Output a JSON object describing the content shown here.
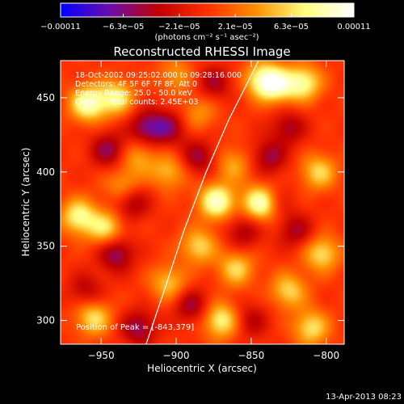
{
  "chart_data": {
    "type": "heatmap",
    "title": "Reconstructed RHESSI Image",
    "xlabel": "Heliocentric X (arcsec)",
    "ylabel": "Heliocentric Y (arcsec)",
    "xlim": [
      -977,
      -788
    ],
    "ylim": [
      284,
      475
    ],
    "x_ticks": [
      -950,
      -900,
      -850,
      -800
    ],
    "x_tick_labels": [
      "−950",
      "−900",
      "−850",
      "−800"
    ],
    "y_ticks": [
      300,
      350,
      400,
      450
    ],
    "y_tick_labels": [
      "300",
      "350",
      "400",
      "450"
    ],
    "colorbar": {
      "range": [
        -0.00011,
        0.00011
      ],
      "ticks": [
        -0.00011,
        -6.3e-05,
        -2.1e-05,
        2.1e-05,
        6.3e-05,
        0.00011
      ],
      "tick_labels": [
        "−0.00011",
        "−6.3e−05",
        "−2.1e−05",
        "2.1e−05",
        "6.3e−05",
        "0.00011"
      ],
      "unit_label": "(photons cm⁻² s⁻¹ asec⁻²)",
      "colors": [
        "#0000ff",
        "#6a0dad",
        "#c00000",
        "#ff3000",
        "#ff9000",
        "#ffff80",
        "#ffffff"
      ]
    },
    "annotations": [
      "18-Oct-2002 09:25:02.000 to 09:28:16.000",
      "Detectors: 4F 5F 6F 7F 8F, Att 0",
      "Energy Range: 25.0 - 50.0 keV",
      "Clean     Total counts: 2.45E+03"
    ],
    "peak_label": "Position of Peak = [-843,379]",
    "peak": [
      -843,
      379
    ],
    "limb_points": [
      [
        -920,
        284
      ],
      [
        -908,
        320
      ],
      [
        -895,
        360
      ],
      [
        -880,
        400
      ],
      [
        -865,
        435
      ],
      [
        -845,
        475
      ]
    ],
    "hot_spots": [
      {
        "x": -843,
        "y": 379,
        "v": 1.0
      },
      {
        "x": -873,
        "y": 380,
        "v": 0.85
      },
      {
        "x": -959,
        "y": 446,
        "v": 0.8
      },
      {
        "x": -965,
        "y": 370,
        "v": 0.7
      },
      {
        "x": -940,
        "y": 450,
        "v": 0.65
      },
      {
        "x": -947,
        "y": 362,
        "v": 0.6
      },
      {
        "x": -842,
        "y": 462,
        "v": 0.75
      },
      {
        "x": -815,
        "y": 460,
        "v": 0.7
      },
      {
        "x": -832,
        "y": 458,
        "v": 0.6
      },
      {
        "x": -805,
        "y": 400,
        "v": 0.55
      },
      {
        "x": -803,
        "y": 345,
        "v": 0.6
      },
      {
        "x": -825,
        "y": 320,
        "v": 0.55
      },
      {
        "x": -810,
        "y": 295,
        "v": 0.6
      },
      {
        "x": -870,
        "y": 300,
        "v": 0.7
      },
      {
        "x": -860,
        "y": 335,
        "v": 0.55
      },
      {
        "x": -905,
        "y": 325,
        "v": 0.5
      },
      {
        "x": -885,
        "y": 350,
        "v": 0.55
      },
      {
        "x": -955,
        "y": 302,
        "v": 0.6
      },
      {
        "x": -905,
        "y": 400,
        "v": 0.45
      },
      {
        "x": -925,
        "y": 410,
        "v": 0.4
      },
      {
        "x": -862,
        "y": 405,
        "v": 0.4
      },
      {
        "x": -900,
        "y": 465,
        "v": 0.35
      },
      {
        "x": -935,
        "y": 390,
        "v": 0.45
      },
      {
        "x": -885,
        "y": 440,
        "v": 0.35
      }
    ],
    "cold_spots": [
      {
        "x": -920,
        "y": 430,
        "v": -0.55
      },
      {
        "x": -945,
        "y": 415,
        "v": -0.5
      },
      {
        "x": -905,
        "y": 430,
        "v": -0.45
      },
      {
        "x": -875,
        "y": 460,
        "v": -0.4
      },
      {
        "x": -940,
        "y": 345,
        "v": -0.55
      },
      {
        "x": -930,
        "y": 380,
        "v": -0.5
      },
      {
        "x": -838,
        "y": 410,
        "v": -0.45
      },
      {
        "x": -835,
        "y": 380,
        "v": -0.35
      },
      {
        "x": -885,
        "y": 410,
        "v": -0.45
      },
      {
        "x": -855,
        "y": 360,
        "v": -0.4
      },
      {
        "x": -925,
        "y": 295,
        "v": -0.5
      },
      {
        "x": -890,
        "y": 310,
        "v": -0.45
      },
      {
        "x": -820,
        "y": 360,
        "v": -0.4
      },
      {
        "x": -960,
        "y": 320,
        "v": -0.35
      },
      {
        "x": -825,
        "y": 430,
        "v": -0.4
      },
      {
        "x": -850,
        "y": 300,
        "v": -0.35
      }
    ]
  },
  "footer": {
    "timestamp": "13-Apr-2013 08:23"
  }
}
